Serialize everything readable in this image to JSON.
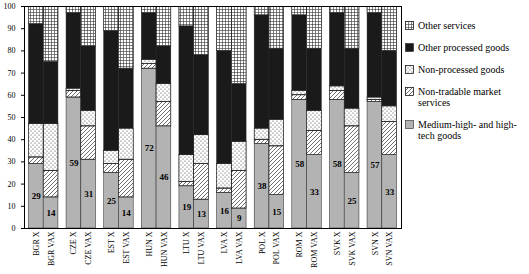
{
  "chart_data": {
    "type": "bar",
    "stacked": true,
    "categories": [
      "BGR X",
      "BGR VAX",
      "CZE X",
      "CZE VAX",
      "EST X",
      "EST VAX",
      "HUN X",
      "HUN VAX",
      "LTU X",
      "LTU VAX",
      "LVA X",
      "LVA VAX",
      "POL X",
      "POL VAX",
      "ROM X",
      "ROM VAX",
      "SVK X",
      "SVK VAX",
      "SVN X",
      "SVN VAX"
    ],
    "series": [
      {
        "name": "Medium-high- and high-tech goods",
        "color": "#b3b3b3",
        "data_labels": true,
        "values": [
          29,
          14,
          59,
          31,
          25,
          14,
          72,
          46,
          19,
          13,
          16,
          9,
          38,
          15,
          58,
          33,
          58,
          25,
          57,
          33
        ]
      },
      {
        "name": "Non-tradable market services",
        "color": "#ffffff",
        "values": [
          3,
          12,
          3,
          15,
          4,
          17,
          2,
          11,
          2,
          16,
          2,
          17,
          2,
          22,
          2,
          11,
          4,
          21,
          1,
          15
        ]
      },
      {
        "name": "Non-processed goods",
        "color": "#ffffff",
        "values": [
          15,
          21,
          1,
          7,
          6,
          14,
          2,
          8,
          12,
          13,
          11,
          13,
          5,
          12,
          2,
          9,
          2,
          8,
          1,
          7
        ]
      },
      {
        "name": "Other processed goods",
        "color": "#1a1a1a",
        "values": [
          45,
          28,
          34,
          29,
          54,
          27,
          21,
          17,
          58,
          36,
          51,
          26,
          51,
          32,
          34,
          28,
          33,
          27,
          38,
          25
        ]
      },
      {
        "name": "Other services",
        "color": "#ffffff",
        "values": [
          8,
          25,
          3,
          18,
          11,
          28,
          3,
          18,
          9,
          22,
          20,
          35,
          4,
          19,
          4,
          19,
          3,
          19,
          3,
          20
        ]
      }
    ],
    "ylim": [
      0,
      100
    ],
    "yticks": [
      0,
      10,
      20,
      30,
      40,
      50,
      60,
      70,
      80,
      90,
      100
    ]
  }
}
